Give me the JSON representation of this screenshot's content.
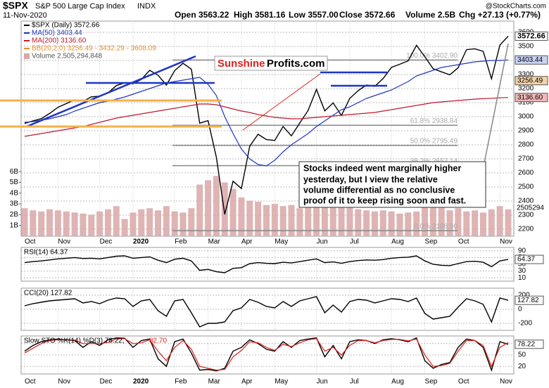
{
  "header": {
    "symbol": "$SPX",
    "name": "S&P 500 Large Cap Index",
    "exchange": "INDX",
    "date": "11-Nov-2020",
    "quote": [
      "Open 3563.22",
      "High 3581.16",
      "Low 3557.00",
      "Close 3572.66",
      "Volume 2.5B",
      "Chg +27.13 (+0.77%)"
    ],
    "source": "@StockCharts.com"
  },
  "logo": {
    "part1": "Sunshine",
    "part2": "Profits.com"
  },
  "annotation": {
    "lines": [
      "Stocks indeed went marginally higher",
      "yesterday, but I view the relative",
      "volume differential as no conclusive",
      "proof of it to keep rising soon and fast."
    ]
  },
  "chart_data": [
    {
      "type": "line",
      "categories": [
        "Oct",
        null,
        null,
        null,
        "Nov",
        null,
        null,
        null,
        null,
        "Dec",
        null,
        null,
        null,
        "2020",
        null,
        null,
        null,
        null,
        "Feb",
        null,
        null,
        null,
        "Mar",
        null,
        null,
        null,
        "Apr",
        null,
        null,
        null,
        "May",
        null,
        null,
        null,
        null,
        "Jun",
        null,
        null,
        null,
        "Jul",
        null,
        null,
        null,
        null,
        "Aug",
        null,
        null,
        null,
        "Sep",
        null,
        null,
        null,
        "Oct",
        null,
        null,
        null,
        null,
        "Nov",
        null
      ],
      "series": [
        {
          "name": "$SPX (Daily) 3572.66",
          "color": "#000000",
          "values": [
            2952,
            2970,
            2986,
            3023,
            3067,
            3093,
            3120,
            3110,
            3141,
            3146,
            3169,
            3221,
            3240,
            3235,
            3265,
            3330,
            3295,
            3225,
            3328,
            3380,
            3338,
            2954,
            2972,
            2711,
            2305,
            2541,
            2489,
            2790,
            2875,
            2837,
            2831,
            2930,
            2864,
            2955,
            3044,
            3194,
            3041,
            3098,
            3009,
            3130,
            3185,
            3225,
            3216,
            3271,
            3351,
            3373,
            3397,
            3508,
            3427,
            3341,
            3319,
            3298,
            3348,
            3477,
            3483,
            3465,
            3270,
            3509,
            3572.66
          ]
        },
        {
          "name": "MA(50) 3403.44",
          "color": "#1f35c4",
          "values": [
            2960,
            2965,
            2975,
            2985,
            3000,
            3015,
            3040,
            3060,
            3080,
            3100,
            3110,
            3125,
            3140,
            3160,
            3180,
            3200,
            3220,
            3240,
            3250,
            3260,
            3270,
            3280,
            3230,
            3150,
            3000,
            2880,
            2770,
            2700,
            2660,
            2650,
            2690,
            2750,
            2800,
            2840,
            2880,
            2930,
            2970,
            3010,
            3050,
            3070,
            3100,
            3130,
            3150,
            3170,
            3190,
            3220,
            3250,
            3290,
            3310,
            3330,
            3350,
            3360,
            3370,
            3380,
            3390,
            3395,
            3400,
            3400,
            3403.44
          ]
        },
        {
          "name": "MA(200) 3136.60",
          "color": "#c0182a",
          "values": [
            2860,
            2870,
            2880,
            2890,
            2900,
            2910,
            2920,
            2930,
            2945,
            2960,
            2975,
            2990,
            3000,
            3010,
            3020,
            3030,
            3040,
            3050,
            3060,
            3070,
            3080,
            3090,
            3090,
            3085,
            3070,
            3055,
            3040,
            3030,
            3015,
            3005,
            2995,
            2990,
            2985,
            2985,
            2990,
            2995,
            3000,
            3005,
            3010,
            3015,
            3020,
            3025,
            3030,
            3040,
            3050,
            3060,
            3070,
            3080,
            3090,
            3100,
            3105,
            3110,
            3115,
            3120,
            3125,
            3128,
            3131,
            3134,
            3136.6
          ]
        }
      ],
      "legend_extra": [
        {
          "label": "BB(20,2.0) 3256.49 - 3432.29 - 3608.09",
          "color": "#e8902a"
        }
      ],
      "ylim": [
        2150,
        3680
      ],
      "yticks": [
        2200,
        2300,
        2400,
        2500,
        2600,
        2700,
        2800,
        2900,
        3000,
        3100,
        3200,
        3300,
        3400,
        3500,
        3600
      ],
      "grid": true,
      "price_tags": [
        {
          "value": 3572.66,
          "label": "3572.66",
          "color": "#ffffff"
        },
        {
          "value": 3403.44,
          "label": "3403.44",
          "color": "#c9d3f5"
        },
        {
          "value": 3256.49,
          "label": "3256.49",
          "color": "#f6d2a8"
        },
        {
          "value": 3136.6,
          "label": "3136.60",
          "color": "#f2b8b8"
        }
      ],
      "fib": [
        {
          "label": "100.0% 3402.90",
          "value": 3402.9
        },
        {
          "label": "61.8% 2938.84",
          "value": 2938.84
        },
        {
          "label": "50.0% 2795.49",
          "value": 2795.49
        },
        {
          "label": "38.2% 2652.14",
          "value": 2652.14
        },
        {
          "label": "0.0% 2188.90",
          "value": 2188.9
        }
      ],
      "volume": {
        "label": "Volume 2,505,294,848",
        "last_label": "2505294",
        "color": "#d9a7a7",
        "values": [
          2.6,
          2.4,
          2.3,
          2.5,
          2.4,
          2.3,
          2.2,
          2.1,
          2.0,
          2.3,
          2.5,
          2.8,
          1.6,
          2.2,
          2.5,
          2.6,
          2.4,
          2.8,
          2.3,
          2.2,
          2.6,
          4.8,
          5.2,
          5.6,
          5.0,
          4.4,
          3.6,
          3.3,
          3.2,
          2.9,
          3.0,
          2.8,
          2.9,
          2.6,
          3.0,
          3.4,
          3.6,
          3.2,
          3.0,
          2.7,
          2.5,
          2.4,
          2.3,
          2.4,
          2.3,
          2.1,
          2.2,
          2.3,
          2.9,
          2.7,
          2.8,
          2.4,
          2.6,
          2.3,
          2.4,
          2.2,
          2.5,
          2.8,
          2.5
        ],
        "ylim": [
          0,
          20
        ],
        "yticks": [
          {
            "value": 1,
            "label": "1B"
          },
          {
            "value": 2,
            "label": "2B"
          },
          {
            "value": 3,
            "label": "3B"
          },
          {
            "value": 4,
            "label": "4B"
          },
          {
            "value": 5,
            "label": "5B"
          },
          {
            "value": 6,
            "label": "6B"
          }
        ]
      }
    },
    {
      "type": "line",
      "title": "RSI(14) 64.37",
      "series": [
        {
          "color": "#000000",
          "values": [
            55,
            58,
            60,
            63,
            66,
            68,
            70,
            67,
            68,
            66,
            70,
            74,
            75,
            68,
            70,
            72,
            62,
            55,
            65,
            68,
            60,
            32,
            35,
            28,
            25,
            38,
            40,
            52,
            55,
            53,
            52,
            56,
            54,
            58,
            62,
            66,
            55,
            57,
            53,
            58,
            61,
            63,
            62,
            64,
            68,
            70,
            71,
            75,
            60,
            50,
            47,
            46,
            52,
            58,
            59,
            56,
            43,
            60,
            64.37
          ]
        }
      ],
      "ylim": [
        0,
        100
      ],
      "yticks": [
        10,
        30,
        50,
        70,
        90
      ],
      "grid": true,
      "tags": [
        {
          "value": 64.37,
          "label": "64.37"
        }
      ]
    },
    {
      "type": "line",
      "title": "CCI(20) 127.82",
      "series": [
        {
          "color": "#000000",
          "values": [
            50,
            80,
            100,
            120,
            130,
            140,
            150,
            90,
            110,
            80,
            130,
            160,
            150,
            40,
            120,
            140,
            -20,
            -100,
            120,
            140,
            -50,
            -250,
            -200,
            -200,
            -180,
            -20,
            20,
            140,
            100,
            40,
            20,
            110,
            40,
            120,
            150,
            180,
            -50,
            60,
            -40,
            110,
            140,
            130,
            90,
            120,
            150,
            140,
            110,
            160,
            -60,
            -140,
            -120,
            -100,
            30,
            150,
            120,
            70,
            -180,
            160,
            127.82
          ]
        }
      ],
      "ylim": [
        -300,
        300
      ],
      "yticks": [
        -200,
        0,
        200
      ],
      "grid": true,
      "tags": [
        {
          "value": 127.82,
          "label": "127.82"
        }
      ]
    },
    {
      "type": "line",
      "title": "Slow STO %K(14) %D(3) 78.22,",
      "title2": "82.70",
      "series": [
        {
          "color": "#000000",
          "values": [
            60,
            75,
            85,
            90,
            92,
            90,
            88,
            70,
            85,
            75,
            90,
            95,
            94,
            70,
            88,
            92,
            40,
            20,
            85,
            92,
            55,
            10,
            12,
            8,
            15,
            60,
            70,
            90,
            80,
            65,
            60,
            85,
            70,
            88,
            92,
            95,
            45,
            75,
            40,
            85,
            90,
            88,
            80,
            90,
            93,
            90,
            85,
            95,
            35,
            15,
            25,
            30,
            70,
            92,
            88,
            70,
            10,
            85,
            78.22
          ]
        },
        {
          "color": "#e0201c",
          "values": [
            55,
            68,
            80,
            88,
            90,
            91,
            89,
            80,
            80,
            80,
            83,
            92,
            93,
            80,
            82,
            90,
            60,
            35,
            70,
            88,
            65,
            20,
            15,
            10,
            12,
            45,
            62,
            85,
            82,
            70,
            62,
            78,
            72,
            82,
            90,
            93,
            60,
            70,
            50,
            75,
            88,
            88,
            82,
            88,
            91,
            91,
            87,
            92,
            50,
            20,
            22,
            28,
            60,
            88,
            88,
            75,
            20,
            70,
            82.7
          ]
        }
      ],
      "ylim": [
        0,
        100
      ],
      "yticks": [
        20,
        50,
        80
      ],
      "grid": true,
      "tags": [
        {
          "value": 78.22,
          "label": "78.22"
        }
      ]
    }
  ]
}
